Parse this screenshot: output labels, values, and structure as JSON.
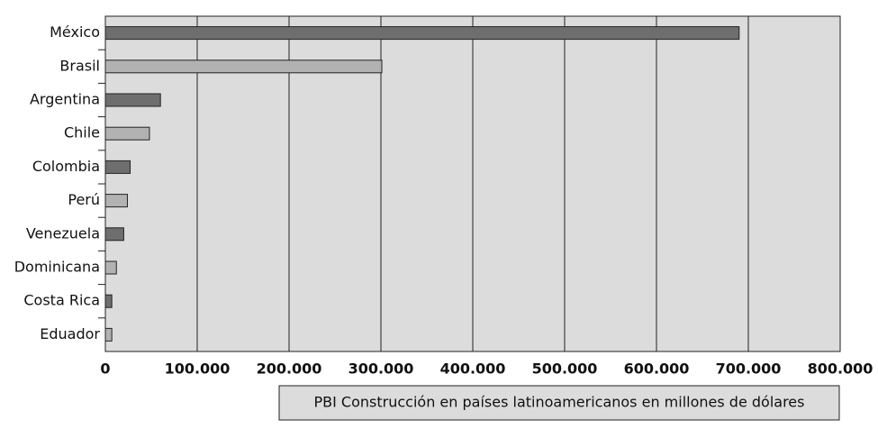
{
  "chart_data": {
    "type": "barh",
    "categories": [
      "México",
      "Brasil",
      "Argentina",
      "Chile",
      "Colombia",
      "Perú",
      "Venezuela",
      "Dominicana",
      "Costa Rica",
      "Eduador"
    ],
    "values": [
      690000,
      301000,
      60000,
      48000,
      27000,
      24000,
      20000,
      12000,
      7000,
      7000
    ],
    "colors": [
      "#6e6e6e",
      "#b2b2b2",
      "#6e6e6e",
      "#b2b2b2",
      "#6e6e6e",
      "#b2b2b2",
      "#6e6e6e",
      "#b2b2b2",
      "#6e6e6e",
      "#b2b2b2"
    ],
    "xlim": [
      0,
      800000
    ],
    "xticks": [
      0,
      {
        "value": 100000,
        "label": "100.000"
      },
      {
        "value": 200000,
        "label": "200.000"
      },
      {
        "value": 300000,
        "label": "300.000"
      },
      {
        "value": 400000,
        "label": "400.000"
      },
      {
        "value": 500000,
        "label": "500.000"
      },
      {
        "value": 600000,
        "label": "600.000"
      },
      {
        "value": 700000,
        "label": "700.000"
      },
      {
        "value": 800000,
        "label": "800.000"
      }
    ],
    "grid": true,
    "legend": "PBI Construcción en países latinoamericanos en millones de dólares"
  }
}
